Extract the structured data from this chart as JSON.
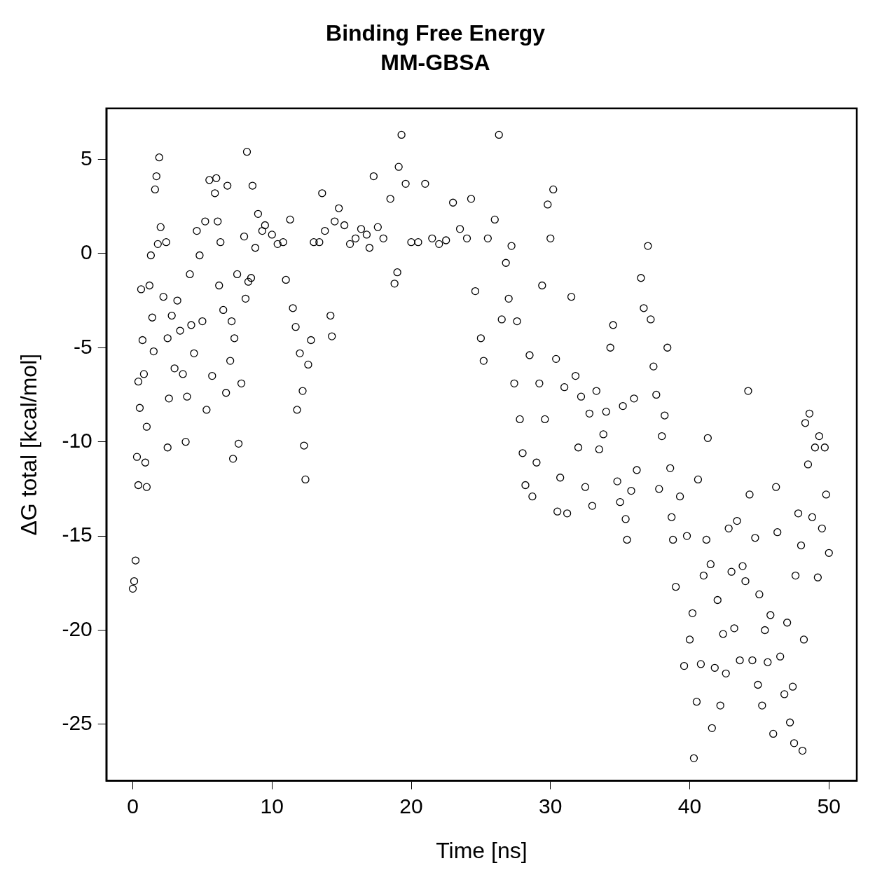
{
  "chart_data": {
    "type": "scatter",
    "title": "Binding Free Energy",
    "subtitle": "MM-GBSA",
    "xlabel": "Time [ns]",
    "ylabel": "ΔG total [kcal/mol]",
    "xlim": [
      -1.9,
      52
    ],
    "ylim": [
      -28,
      7.7
    ],
    "xticks": [
      0,
      10,
      20,
      30,
      40,
      50
    ],
    "yticks": [
      -25,
      -20,
      -15,
      -10,
      -5,
      0,
      5
    ],
    "marker": "circle",
    "grid": false,
    "legend": false,
    "series": [
      {
        "color": "#000000",
        "x": [
          0,
          0.1,
          0.2,
          0.3,
          0.4,
          0.4,
          0.5,
          0.6,
          0.7,
          0.8,
          0.9,
          1,
          1,
          1.2,
          1.3,
          1.4,
          1.5,
          1.6,
          1.7,
          1.8,
          1.9,
          2,
          2.2,
          2.4,
          2.5,
          2.5,
          2.6,
          2.8,
          3,
          3.2,
          3.4,
          3.6,
          3.8,
          3.9,
          4.1,
          4.2,
          4.4,
          4.6,
          4.8,
          5,
          5.2,
          5.3,
          5.5,
          5.7,
          5.9,
          6,
          6.1,
          6.2,
          6.3,
          6.5,
          6.7,
          6.8,
          7,
          7.1,
          7.2,
          7.3,
          7.5,
          7.6,
          7.8,
          8,
          8.1,
          8.2,
          8.3,
          8.5,
          8.6,
          8.8,
          9,
          9.3,
          9.5,
          10,
          10.4,
          10.8,
          11,
          11.3,
          11.5,
          11.7,
          11.8,
          12,
          12.2,
          12.3,
          12.4,
          12.6,
          12.8,
          13,
          13.4,
          13.6,
          13.8,
          14.2,
          14.3,
          14.5,
          14.8,
          15.2,
          15.6,
          16,
          16.4,
          16.8,
          17,
          17.3,
          17.6,
          18,
          18.5,
          18.8,
          19,
          19.1,
          19.3,
          19.6,
          20,
          20.5,
          21,
          21.5,
          22,
          22.5,
          23,
          23.5,
          24,
          24.3,
          24.6,
          25,
          25.2,
          25.5,
          26,
          26.3,
          26.5,
          26.8,
          27,
          27.2,
          27.4,
          27.6,
          27.8,
          28,
          28.2,
          28.5,
          28.7,
          29,
          29.2,
          29.4,
          29.6,
          29.8,
          30,
          30.2,
          30.4,
          30.5,
          30.7,
          31,
          31.2,
          31.5,
          31.8,
          32,
          32.2,
          32.5,
          32.8,
          33,
          33.3,
          33.5,
          33.8,
          34,
          34.3,
          34.5,
          34.8,
          35,
          35.2,
          35.4,
          35.5,
          35.8,
          36,
          36.2,
          36.5,
          36.7,
          37,
          37.2,
          37.4,
          37.6,
          37.8,
          38,
          38.2,
          38.4,
          38.6,
          38.7,
          38.8,
          39,
          39.3,
          39.6,
          39.8,
          40,
          40.2,
          40.3,
          40.5,
          40.6,
          40.8,
          41,
          41.2,
          41.3,
          41.5,
          41.6,
          41.8,
          42,
          42.2,
          42.4,
          42.6,
          42.8,
          43,
          43.2,
          43.4,
          43.6,
          43.8,
          44,
          44.2,
          44.3,
          44.5,
          44.7,
          44.9,
          45,
          45.2,
          45.4,
          45.6,
          45.8,
          46,
          46.2,
          46.3,
          46.5,
          46.8,
          47,
          47.2,
          47.4,
          47.5,
          47.6,
          47.8,
          48,
          48.1,
          48.2,
          48.3,
          48.5,
          48.6,
          48.8,
          49,
          49.2,
          49.3,
          49.5,
          49.7,
          49.8,
          50
        ],
        "values": [
          -17.8,
          -17.4,
          -16.3,
          -10.8,
          -12.3,
          -6.8,
          -8.2,
          -1.9,
          -4.6,
          -6.4,
          -11.1,
          -12.4,
          -9.2,
          -1.7,
          -0.1,
          -3.4,
          -5.2,
          3.4,
          4.1,
          0.5,
          5.1,
          1.4,
          -2.3,
          0.6,
          -4.5,
          -10.3,
          -7.7,
          -3.3,
          -6.1,
          -2.5,
          -4.1,
          -6.4,
          -10,
          -7.6,
          -1.1,
          -3.8,
          -5.3,
          1.2,
          -0.1,
          -3.6,
          1.7,
          -8.3,
          3.9,
          -6.5,
          3.2,
          4,
          1.7,
          -1.7,
          0.6,
          -3,
          -7.4,
          3.6,
          -5.7,
          -3.6,
          -10.9,
          -4.5,
          -1.1,
          -10.1,
          -6.9,
          0.9,
          -2.4,
          5.4,
          -1.5,
          -1.3,
          3.6,
          0.3,
          2.1,
          1.2,
          1.5,
          1,
          0.5,
          0.6,
          -1.4,
          1.8,
          -2.9,
          -3.9,
          -8.3,
          -5.3,
          -7.3,
          -10.2,
          -12,
          -5.9,
          -4.6,
          0.6,
          0.6,
          3.2,
          1.2,
          -3.3,
          -4.4,
          1.7,
          2.4,
          1.5,
          0.5,
          0.8,
          1.3,
          1,
          0.3,
          4.1,
          1.4,
          0.8,
          2.9,
          -1.6,
          -1,
          4.6,
          6.3,
          3.7,
          0.6,
          0.6,
          3.7,
          0.8,
          0.5,
          0.7,
          2.7,
          1.3,
          0.8,
          2.9,
          -2,
          -4.5,
          -5.7,
          0.8,
          1.8,
          6.3,
          -3.5,
          -0.5,
          -2.4,
          0.4,
          -6.9,
          -3.6,
          -8.8,
          -10.6,
          -12.3,
          -5.4,
          -12.9,
          -11.1,
          -6.9,
          -1.7,
          -8.8,
          2.6,
          0.8,
          3.4,
          -5.6,
          -13.7,
          -11.9,
          -7.1,
          -13.8,
          -2.3,
          -6.5,
          -10.3,
          -7.6,
          -12.4,
          -8.5,
          -13.4,
          -7.3,
          -10.4,
          -9.6,
          -8.4,
          -5,
          -3.8,
          -12.1,
          -13.2,
          -8.1,
          -14.1,
          -15.2,
          -12.6,
          -7.7,
          -11.5,
          -1.3,
          -2.9,
          0.4,
          -3.5,
          -6,
          -7.5,
          -12.5,
          -9.7,
          -8.6,
          -5,
          -11.4,
          -14,
          -15.2,
          -17.7,
          -12.9,
          -21.9,
          -15,
          -20.5,
          -19.1,
          -26.8,
          -23.8,
          -12,
          -21.8,
          -17.1,
          -15.2,
          -9.8,
          -16.5,
          -25.2,
          -22,
          -18.4,
          -24,
          -20.2,
          -22.3,
          -14.6,
          -16.9,
          -19.9,
          -14.2,
          -21.6,
          -16.6,
          -17.4,
          -7.3,
          -12.8,
          -21.6,
          -15.1,
          -22.9,
          -18.1,
          -24,
          -20,
          -21.7,
          -19.2,
          -25.5,
          -12.4,
          -14.8,
          -21.4,
          -23.4,
          -19.6,
          -24.9,
          -23,
          -26,
          -17.1,
          -13.8,
          -15.5,
          -26.4,
          -20.5,
          -9,
          -11.2,
          -8.5,
          -14,
          -10.3,
          -17.2,
          -9.7,
          -14.6,
          -10.3,
          -12.8,
          -15.9
        ]
      }
    ]
  }
}
